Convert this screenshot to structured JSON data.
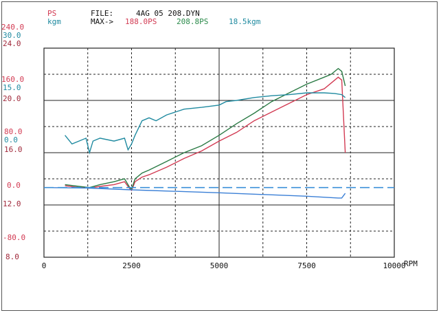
{
  "header": {
    "ps_label": "PS",
    "kgm_label": "kgm",
    "file_label": "FILE:",
    "file_name": "4AG 05 208.DYN",
    "max_label": "MAX->",
    "max_ps_red": "188.0PS",
    "max_ps_green": "208.8PS",
    "max_kgm": "18.5kgm"
  },
  "colors": {
    "red": "#d23a52",
    "green": "#2a7a44",
    "teal": "#1f8aa0",
    "blue": "#3a7fd6",
    "dashed": "#3a8fd8",
    "axis_label": "#a0283a"
  },
  "chart_data": {
    "type": "line",
    "xlabel": "RPM",
    "xlim": [
      0,
      10000
    ],
    "x_ticks": [
      "0",
      "2500",
      "5000",
      "7500",
      "10000"
    ],
    "x_tick_values": [
      0,
      2500,
      5000,
      7500,
      10000
    ],
    "y_axes": {
      "ps": {
        "ticks": [
          "240.0",
          "160.0",
          "80.0",
          "0.0",
          "-80.0"
        ],
        "tick_values": [
          240,
          160,
          80,
          0,
          -80
        ],
        "range": [
          -120,
          240
        ]
      },
      "kgm": {
        "ticks": [
          "30.0",
          "15.0",
          "0.0"
        ],
        "tick_values": [
          30,
          15,
          0
        ]
      },
      "outer": {
        "ticks": [
          "24.0",
          "20.0",
          "16.0",
          "12.0",
          "8.0"
        ],
        "tick_values": [
          24,
          20,
          16,
          12,
          8
        ]
      }
    },
    "grid": true,
    "series": [
      {
        "name": "188.0PS",
        "color": "red",
        "axis": "ps",
        "x": [
          600,
          1000,
          1300,
          1600,
          2000,
          2300,
          2450,
          2500,
          2600,
          2800,
          3000,
          3500,
          4000,
          4500,
          5000,
          5500,
          6000,
          6500,
          7000,
          7500,
          8000,
          8200,
          8400,
          8500,
          8600
        ],
        "y": [
          3,
          0,
          -1,
          2,
          5,
          10,
          -2,
          -5,
          10,
          18,
          22,
          35,
          50,
          63,
          80,
          95,
          115,
          130,
          145,
          160,
          170,
          180,
          190,
          185,
          60
        ]
      },
      {
        "name": "208.8PS",
        "color": "green",
        "axis": "ps",
        "x": [
          600,
          1000,
          1300,
          1600,
          2000,
          2300,
          2450,
          2500,
          2600,
          2800,
          3000,
          3500,
          4000,
          4500,
          5000,
          5500,
          6000,
          6500,
          7000,
          7500,
          8000,
          8200,
          8400,
          8500,
          8600
        ],
        "y": [
          5,
          2,
          0,
          5,
          10,
          15,
          0,
          -3,
          15,
          25,
          30,
          45,
          60,
          72,
          90,
          110,
          128,
          148,
          163,
          178,
          190,
          195,
          205,
          200,
          175
        ]
      },
      {
        "name": "18.5kgm",
        "color": "teal",
        "axis": "ps",
        "x": [
          600,
          800,
          1000,
          1200,
          1300,
          1400,
          1600,
          2000,
          2300,
          2400,
          2500,
          2600,
          2800,
          3000,
          3200,
          3500,
          4000,
          4500,
          5000,
          5200,
          5500,
          6000,
          6500,
          7000,
          7500,
          8000,
          8300,
          8500,
          8600
        ],
        "y": [
          90,
          75,
          80,
          85,
          60,
          80,
          85,
          80,
          85,
          65,
          75,
          90,
          115,
          120,
          115,
          125,
          135,
          138,
          142,
          148,
          150,
          155,
          158,
          160,
          163,
          163,
          162,
          160,
          155
        ]
      },
      {
        "name": "",
        "color": "blue",
        "axis": "ps",
        "x": [
          0,
          1300,
          2500,
          5000,
          7500,
          8400,
          8500,
          8600
        ],
        "y": [
          0,
          -1,
          -4,
          -9,
          -15,
          -18,
          -18,
          -10
        ]
      },
      {
        "name": "",
        "color": "dashed",
        "axis": "ps",
        "x": [
          0,
          10000
        ],
        "y": [
          0,
          0
        ]
      }
    ]
  }
}
